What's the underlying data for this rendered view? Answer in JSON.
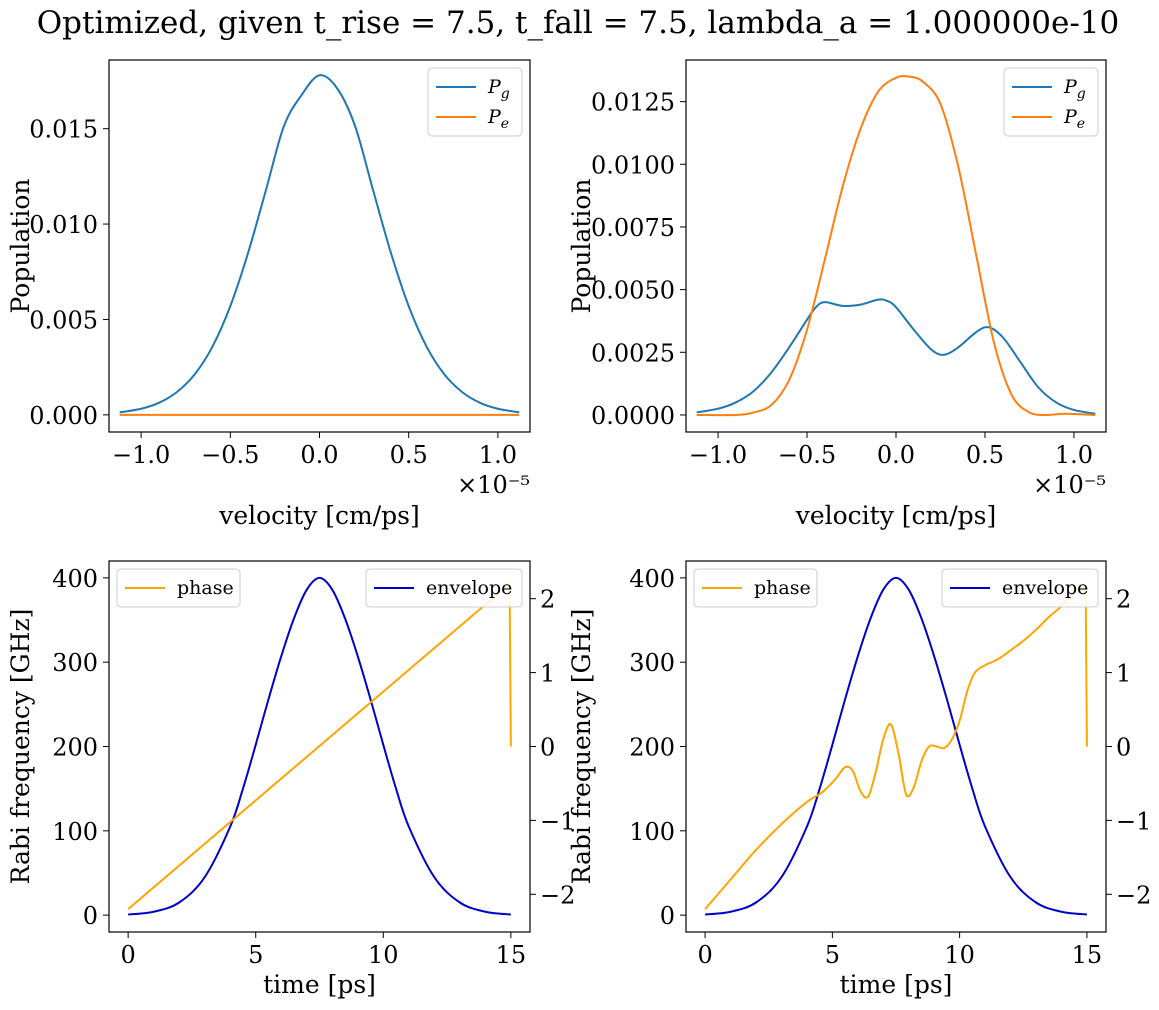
{
  "figure": {
    "suptitle": "Optimized, given t_rise = 7.5, t_fall = 7.5, lambda_a = 1.000000e-10"
  },
  "colors": {
    "pg": "#1f77b4",
    "pe": "#ff7f0e",
    "phase": "#ffa500",
    "envelope": "#0000cd",
    "axes": "#000000",
    "legend_border": "#cccccc"
  },
  "chart_data": [
    {
      "type": "line",
      "panel": "top-left",
      "xlabel": "velocity [cm/ps]",
      "ylabel": "Population",
      "x_offset_text": "×10⁻⁵",
      "x_unit_scale": 1e-05,
      "xlim": [
        -1.18,
        1.18
      ],
      "ylim": [
        -0.0009,
        0.0186
      ],
      "xticks": [
        -1.0,
        -0.5,
        0.0,
        0.5,
        1.0
      ],
      "xtick_labels": [
        "−1.0",
        "−0.5",
        "0.0",
        "0.5",
        "1.0"
      ],
      "yticks": [
        0.0,
        0.005,
        0.01,
        0.015
      ],
      "ytick_labels": [
        "0.000",
        "0.005",
        "0.010",
        "0.015"
      ],
      "grid": false,
      "legend": {
        "placement": "upper right",
        "entries": [
          "P_g",
          "P_e"
        ]
      },
      "series": [
        {
          "name": "P_g",
          "label_main": "P",
          "label_sub": "g",
          "color": "#1f77b4",
          "x": [
            -1.12,
            -1.0,
            -0.9,
            -0.8,
            -0.7,
            -0.6,
            -0.5,
            -0.4,
            -0.3,
            -0.2,
            -0.1,
            0.0,
            0.1,
            0.2,
            0.3,
            0.4,
            0.5,
            0.6,
            0.7,
            0.8,
            0.9,
            1.0,
            1.12
          ],
          "y": [
            0.00013,
            0.00032,
            0.00063,
            0.00119,
            0.00212,
            0.00358,
            0.0057,
            0.0085,
            0.01179,
            0.01512,
            0.01677,
            0.0178,
            0.0171,
            0.01512,
            0.01179,
            0.0085,
            0.0057,
            0.00358,
            0.00212,
            0.00119,
            0.00063,
            0.00032,
            0.00013
          ]
        },
        {
          "name": "P_e",
          "label_main": "P",
          "label_sub": "e",
          "color": "#ff7f0e",
          "x": [
            -1.12,
            -0.5,
            0.0,
            0.5,
            1.12
          ],
          "y": [
            0.0,
            0.0,
            0.0,
            0.0,
            0.0
          ]
        }
      ]
    },
    {
      "type": "line",
      "panel": "top-right",
      "xlabel": "velocity [cm/ps]",
      "ylabel": "Population",
      "x_offset_text": "×10⁻⁵",
      "x_unit_scale": 1e-05,
      "xlim": [
        -1.18,
        1.18
      ],
      "ylim": [
        -0.00068,
        0.01416
      ],
      "xticks": [
        -1.0,
        -0.5,
        0.0,
        0.5,
        1.0
      ],
      "xtick_labels": [
        "−1.0",
        "−0.5",
        "0.0",
        "0.5",
        "1.0"
      ],
      "yticks": [
        0.0,
        0.0025,
        0.005,
        0.0075,
        0.01,
        0.0125
      ],
      "ytick_labels": [
        "0.0000",
        "0.0025",
        "0.0050",
        "0.0075",
        "0.0100",
        "0.0125"
      ],
      "grid": false,
      "legend": {
        "placement": "upper right",
        "entries": [
          "P_g",
          "P_e"
        ]
      },
      "series": [
        {
          "name": "P_g",
          "label_main": "P",
          "label_sub": "g",
          "color": "#1f77b4",
          "x": [
            -1.12,
            -1.0,
            -0.9,
            -0.8,
            -0.7,
            -0.6,
            -0.5,
            -0.45,
            -0.4,
            -0.3,
            -0.2,
            -0.1,
            -0.05,
            0.0,
            0.1,
            0.2,
            0.27,
            0.35,
            0.45,
            0.52,
            0.6,
            0.7,
            0.8,
            0.9,
            1.0,
            1.12
          ],
          "y": [
            0.0001,
            0.00025,
            0.0005,
            0.00095,
            0.0017,
            0.0027,
            0.0038,
            0.0043,
            0.0045,
            0.00435,
            0.0044,
            0.0046,
            0.00455,
            0.0043,
            0.0034,
            0.0026,
            0.0024,
            0.0027,
            0.0033,
            0.0035,
            0.0031,
            0.0021,
            0.0011,
            0.0005,
            0.0002,
            5e-05
          ]
        },
        {
          "name": "P_e",
          "label_main": "P",
          "label_sub": "e",
          "color": "#ff7f0e",
          "x": [
            -1.12,
            -0.9,
            -0.8,
            -0.7,
            -0.6,
            -0.5,
            -0.4,
            -0.3,
            -0.2,
            -0.1,
            0.0,
            0.07,
            0.15,
            0.25,
            0.35,
            0.45,
            0.55,
            0.65,
            0.75,
            0.85,
            0.95,
            1.12
          ],
          "y": [
            0.0,
            0.0,
            0.0001,
            0.0004,
            0.0014,
            0.0034,
            0.0062,
            0.0091,
            0.0114,
            0.0129,
            0.01345,
            0.0135,
            0.0133,
            0.0124,
            0.0099,
            0.0064,
            0.0029,
            0.0008,
            0.0001,
            0.0,
            5e-05,
            0.0
          ]
        }
      ]
    },
    {
      "type": "line",
      "panel": "bottom-left",
      "xlabel": "time [ps]",
      "ylabel": "Rabi frequency [GHz]",
      "xlim": [
        -0.75,
        15.75
      ],
      "ylim": [
        -20,
        420
      ],
      "y2lim": [
        -2.51,
        2.51
      ],
      "xticks": [
        0,
        5,
        10,
        15
      ],
      "xtick_labels": [
        "0",
        "5",
        "10",
        "15"
      ],
      "yticks": [
        0,
        100,
        200,
        300,
        400
      ],
      "ytick_labels": [
        "0",
        "100",
        "200",
        "300",
        "400"
      ],
      "y2ticks": [
        -2,
        -1,
        0,
        1,
        2
      ],
      "y2tick_labels": [
        "−2",
        "−1",
        "0",
        "1",
        "2"
      ],
      "grid": false,
      "legends": [
        {
          "placement": "upper left",
          "entries": [
            "phase"
          ]
        },
        {
          "placement": "upper right",
          "entries": [
            "envelope"
          ]
        }
      ],
      "series": [
        {
          "name": "envelope",
          "axis": "left",
          "color": "#0000cd",
          "x": [
            0,
            1,
            2,
            3,
            4,
            4.5,
            5,
            5.5,
            6,
            6.5,
            7,
            7.5,
            8,
            8.5,
            9,
            9.5,
            10,
            10.5,
            11,
            12,
            13,
            14,
            15
          ],
          "y": [
            0.7,
            4,
            15,
            45,
            105,
            150,
            202,
            256,
            307,
            352,
            386,
            400,
            386,
            352,
            307,
            256,
            202,
            150,
            105,
            45,
            15,
            4,
            0.7
          ]
        },
        {
          "name": "phase",
          "axis": "right",
          "color": "#ffa500",
          "x": [
            0,
            14.95,
            15.0
          ],
          "y": [
            -2.2,
            2.2,
            0.0
          ]
        }
      ]
    },
    {
      "type": "line",
      "panel": "bottom-right",
      "xlabel": "time [ps]",
      "ylabel": "Rabi frequency [GHz]",
      "xlim": [
        -0.75,
        15.75
      ],
      "ylim": [
        -20,
        420
      ],
      "y2lim": [
        -2.51,
        2.51
      ],
      "xticks": [
        0,
        5,
        10,
        15
      ],
      "xtick_labels": [
        "0",
        "5",
        "10",
        "15"
      ],
      "yticks": [
        0,
        100,
        200,
        300,
        400
      ],
      "ytick_labels": [
        "0",
        "100",
        "200",
        "300",
        "400"
      ],
      "y2ticks": [
        -2,
        -1,
        0,
        1,
        2
      ],
      "y2tick_labels": [
        "−2",
        "−1",
        "0",
        "1",
        "2"
      ],
      "grid": false,
      "legends": [
        {
          "placement": "upper left",
          "entries": [
            "phase"
          ]
        },
        {
          "placement": "upper right",
          "entries": [
            "envelope"
          ]
        }
      ],
      "series": [
        {
          "name": "envelope",
          "axis": "left",
          "color": "#0000cd",
          "x": [
            0,
            1,
            2,
            3,
            4,
            4.5,
            5,
            5.5,
            6,
            6.5,
            7,
            7.5,
            8,
            8.5,
            9,
            9.5,
            10,
            10.5,
            11,
            12,
            13,
            14,
            15
          ],
          "y": [
            0.7,
            4,
            15,
            45,
            105,
            150,
            202,
            256,
            307,
            352,
            386,
            400,
            386,
            352,
            307,
            256,
            202,
            150,
            105,
            45,
            15,
            4,
            0.7
          ]
        },
        {
          "name": "phase",
          "axis": "right",
          "color": "#ffa500",
          "x": [
            0,
            1,
            2,
            3,
            4,
            4.6,
            5.1,
            5.5,
            5.8,
            6.1,
            6.4,
            6.7,
            7.0,
            7.3,
            7.6,
            7.9,
            8.2,
            8.5,
            8.8,
            9.1,
            9.4,
            9.7,
            10.0,
            10.3,
            10.6,
            11.0,
            11.5,
            12.0,
            12.5,
            13.0,
            13.5,
            14.0,
            14.5,
            14.95,
            15.0
          ],
          "y": [
            -2.2,
            -1.8,
            -1.4,
            -1.05,
            -0.75,
            -0.62,
            -0.45,
            -0.28,
            -0.33,
            -0.6,
            -0.68,
            -0.35,
            0.1,
            0.3,
            -0.1,
            -0.65,
            -0.55,
            -0.2,
            0.0,
            0.0,
            -0.02,
            0.1,
            0.35,
            0.75,
            1.0,
            1.1,
            1.18,
            1.3,
            1.43,
            1.58,
            1.75,
            1.9,
            2.1,
            2.2,
            0.0
          ]
        }
      ]
    }
  ]
}
